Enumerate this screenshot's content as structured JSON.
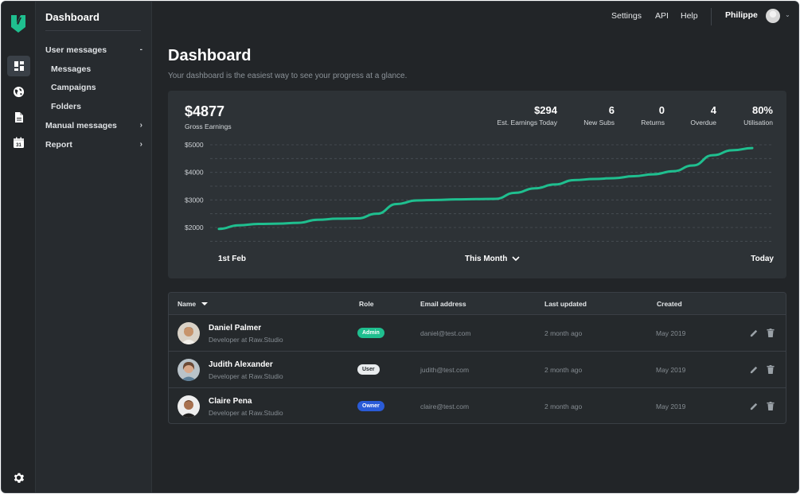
{
  "app": {
    "title": "Dashboard"
  },
  "rail": {
    "icons": [
      {
        "name": "logo-icon"
      },
      {
        "name": "dashboard-icon",
        "active": true
      },
      {
        "name": "globe-icon"
      },
      {
        "name": "document-icon"
      },
      {
        "name": "calendar-icon",
        "text": "31"
      },
      {
        "name": "settings-icon"
      }
    ]
  },
  "sidebar": {
    "items": [
      {
        "label": "User messages",
        "chevron": "-"
      },
      {
        "label": "Messages"
      },
      {
        "label": "Campaigns"
      },
      {
        "label": "Folders"
      },
      {
        "label": "Manual messages",
        "chevron": "›"
      },
      {
        "label": "Report",
        "chevron": "›"
      }
    ]
  },
  "topbar": {
    "settings": "Settings",
    "api": "API",
    "help": "Help",
    "user": "Philippe",
    "caret": "⌄"
  },
  "header": {
    "title": "Dashboard",
    "subtitle": "Your dashboard is the easiest way to see your progress at a glance."
  },
  "summary": {
    "gross_value": "$4877",
    "gross_label": "Gross Earnings",
    "stats": [
      {
        "value": "$294",
        "label": "Est. Earnings Today"
      },
      {
        "value": "6",
        "label": "New Subs"
      },
      {
        "value": "0",
        "label": "Returns"
      },
      {
        "value": "4",
        "label": "Overdue"
      },
      {
        "value": "80%",
        "label": "Utilisation"
      }
    ],
    "footer": {
      "start": "1st Feb",
      "range": "This Month",
      "end": "Today"
    }
  },
  "chart_data": {
    "type": "line",
    "title": "",
    "xlabel": "",
    "ylabel": "",
    "y_ticks": [
      "$5000",
      "$4000",
      "$3000",
      "$2000"
    ],
    "ylim": [
      1500,
      5000
    ],
    "grid": true,
    "color": "#1fbf8f",
    "values": [
      1950,
      2080,
      2130,
      2140,
      2170,
      2280,
      2320,
      2330,
      2500,
      2850,
      2980,
      3000,
      3020,
      3030,
      3040,
      3260,
      3420,
      3560,
      3720,
      3760,
      3790,
      3860,
      3930,
      4040,
      4250,
      4620,
      4800,
      4880
    ]
  },
  "table": {
    "headers": {
      "name": "Name",
      "role": "Role",
      "email": "Email address",
      "updated": "Last updated",
      "created": "Created"
    },
    "rows": [
      {
        "name": "Daniel Palmer",
        "title": "Developer at Raw.Studio",
        "role": "Admin",
        "email": "daniel@test.com",
        "updated": "2 month ago",
        "created": "May 2019"
      },
      {
        "name": "Judith Alexander",
        "title": "Developer at Raw.Studio",
        "role": "User",
        "email": "judith@test.com",
        "updated": "2 month ago",
        "created": "May 2019"
      },
      {
        "name": "Claire Pena",
        "title": "Developer at Raw.Studio",
        "role": "Owner",
        "email": "claire@test.com",
        "updated": "2 month ago",
        "created": "May 2019"
      }
    ]
  },
  "colors": {
    "accent": "#1fbf8f",
    "admin_badge": "#1fbf8f",
    "user_badge": "#e9ecee",
    "owner_badge": "#2a5bd7",
    "background": "#222528",
    "card": "#2d3236"
  }
}
